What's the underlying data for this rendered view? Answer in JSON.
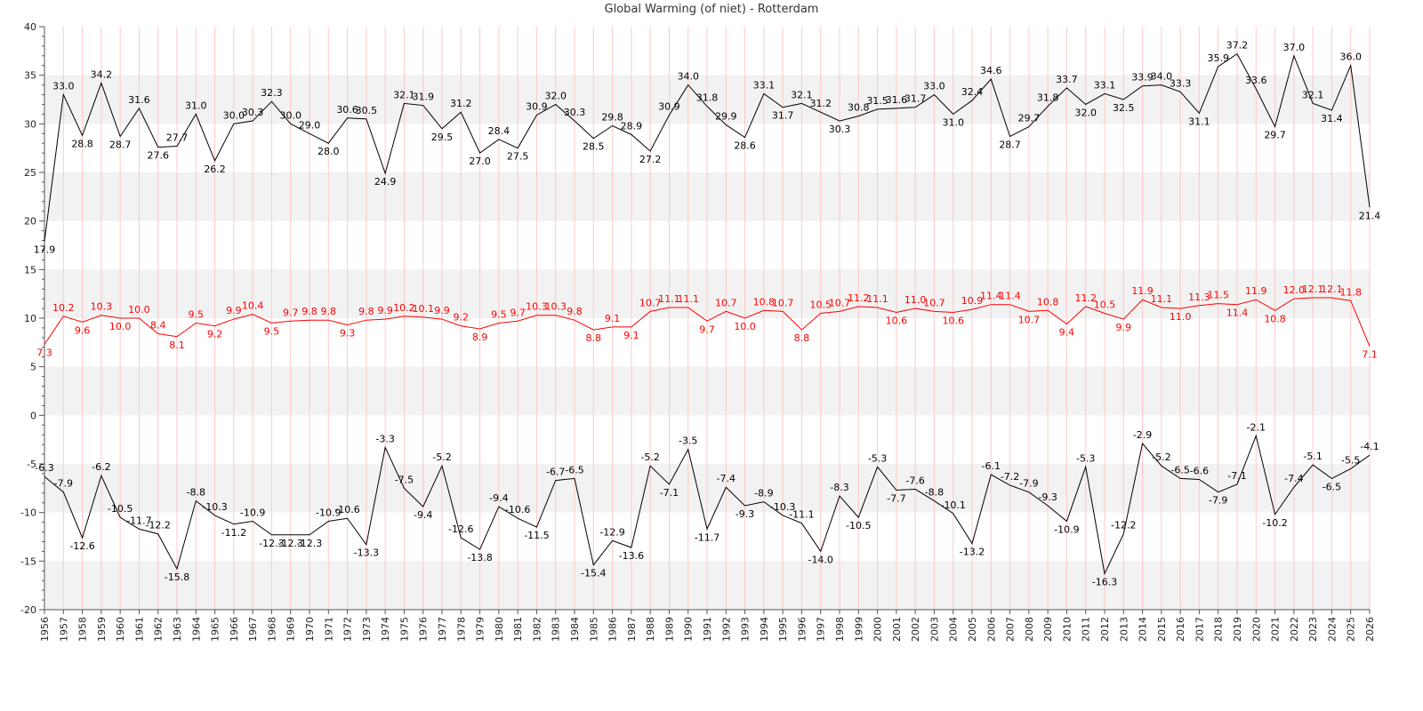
{
  "chart_data": {
    "type": "line",
    "title": "Global Warming (of niet) - Rotterdam",
    "xlabel": "",
    "ylabel": "",
    "ylim": [
      -20,
      40
    ],
    "yticks": [
      -20,
      -15,
      -10,
      -5,
      0,
      5,
      10,
      15,
      20,
      25,
      30,
      35,
      40
    ],
    "grid": "alternating horizontal bands, vertical lines per year",
    "legend": "none",
    "categories": [
      "1956",
      "1957",
      "1958",
      "1959",
      "1960",
      "1961",
      "1962",
      "1963",
      "1964",
      "1965",
      "1966",
      "1967",
      "1968",
      "1969",
      "1970",
      "1971",
      "1972",
      "1973",
      "1974",
      "1975",
      "1976",
      "1977",
      "1978",
      "1979",
      "1980",
      "1981",
      "1982",
      "1983",
      "1984",
      "1985",
      "1986",
      "1987",
      "1988",
      "1989",
      "1990",
      "1991",
      "1992",
      "1993",
      "1994",
      "1995",
      "1996",
      "1997",
      "1998",
      "1999",
      "2000",
      "2001",
      "2002",
      "2003",
      "2004",
      "2005",
      "2006",
      "2007",
      "2008",
      "2009",
      "2010",
      "2011",
      "2012",
      "2013",
      "2014",
      "2015",
      "2016",
      "2017",
      "2018",
      "2019",
      "2020",
      "2021",
      "2022",
      "2023",
      "2024",
      "2025",
      "2026"
    ],
    "series": [
      {
        "color": "#000000",
        "values": [
          17.9,
          33.0,
          28.8,
          34.2,
          28.7,
          31.6,
          27.6,
          27.7,
          31.0,
          26.2,
          30.0,
          30.3,
          32.3,
          30.0,
          29.0,
          28.0,
          30.6,
          30.5,
          24.9,
          32.1,
          31.9,
          29.5,
          31.2,
          27.0,
          28.4,
          27.5,
          30.9,
          32.0,
          30.3,
          28.5,
          29.8,
          28.9,
          27.2,
          30.9,
          34.0,
          31.8,
          29.9,
          28.6,
          33.1,
          31.7,
          32.1,
          31.2,
          30.3,
          30.8,
          31.5,
          31.6,
          31.7,
          33.0,
          31.0,
          32.4,
          34.6,
          28.7,
          29.7,
          31.8,
          33.7,
          32.0,
          33.1,
          32.5,
          33.9,
          34.0,
          33.3,
          31.1,
          35.9,
          37.2,
          33.6,
          29.7,
          37.0,
          32.1,
          31.4,
          36.0,
          21.4
        ]
      },
      {
        "color": "#ff0000",
        "values": [
          7.3,
          10.2,
          9.6,
          10.3,
          10.0,
          10.0,
          8.4,
          8.1,
          9.5,
          9.2,
          9.9,
          10.4,
          9.5,
          9.7,
          9.8,
          9.8,
          9.3,
          9.8,
          9.9,
          10.2,
          10.1,
          9.9,
          9.2,
          8.9,
          9.5,
          9.7,
          10.3,
          10.3,
          9.8,
          8.8,
          9.1,
          9.1,
          10.7,
          11.1,
          11.1,
          9.7,
          10.7,
          10.0,
          10.8,
          10.7,
          8.8,
          10.5,
          10.7,
          11.2,
          11.1,
          10.6,
          11.0,
          10.7,
          10.6,
          10.9,
          11.4,
          11.4,
          10.7,
          10.8,
          9.4,
          11.2,
          10.5,
          9.9,
          11.9,
          11.1,
          11.0,
          11.3,
          11.5,
          11.4,
          11.9,
          10.8,
          12.0,
          12.1,
          12.1,
          11.8,
          7.1
        ]
      },
      {
        "color": "#000000",
        "values": [
          -6.3,
          -7.9,
          -12.6,
          -6.2,
          -10.5,
          -11.7,
          -12.2,
          -15.8,
          -8.8,
          -10.3,
          -11.2,
          -10.9,
          -12.3,
          -12.3,
          -12.3,
          -10.9,
          -10.6,
          -13.3,
          -3.3,
          -7.5,
          -9.4,
          -5.2,
          -12.6,
          -13.8,
          -9.4,
          -10.6,
          -11.5,
          -6.7,
          -6.5,
          -15.4,
          -12.9,
          -13.6,
          -5.2,
          -7.1,
          -3.5,
          -11.7,
          -7.4,
          -9.3,
          -8.9,
          -10.3,
          -11.1,
          -14.0,
          -8.3,
          -10.5,
          -5.3,
          -7.7,
          -7.6,
          -8.8,
          -10.1,
          -13.2,
          -6.1,
          -7.2,
          -7.9,
          -9.3,
          -10.9,
          -5.3,
          -16.3,
          -12.2,
          -2.9,
          -5.2,
          -6.5,
          -6.6,
          -7.9,
          -7.1,
          -2.1,
          -10.2,
          -7.4,
          -5.1,
          -6.5,
          -5.5,
          -4.1
        ]
      }
    ],
    "colors": {
      "band": "#f2f2f2",
      "vgrid": "#ffc8c8",
      "axis": "#555555",
      "text": "#222222"
    }
  }
}
